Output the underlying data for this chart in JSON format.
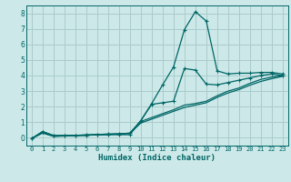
{
  "xlabel": "Humidex (Indice chaleur)",
  "bg_color": "#cce8e8",
  "grid_color": "#aacccc",
  "line_color": "#006666",
  "xlim": [
    -0.5,
    23.5
  ],
  "ylim": [
    -0.5,
    8.5
  ],
  "xticks": [
    0,
    1,
    2,
    3,
    4,
    5,
    6,
    7,
    8,
    9,
    10,
    11,
    12,
    13,
    14,
    15,
    16,
    17,
    18,
    19,
    20,
    21,
    22,
    23
  ],
  "yticks": [
    0,
    1,
    2,
    3,
    4,
    5,
    6,
    7,
    8
  ],
  "curve_spike_x": [
    0,
    1,
    2,
    3,
    4,
    5,
    6,
    7,
    8,
    9,
    10,
    11,
    12,
    13,
    14,
    15,
    16,
    17,
    18,
    19,
    20,
    21,
    22,
    23
  ],
  "curve_spike_y": [
    -0.05,
    0.4,
    0.15,
    0.15,
    0.15,
    0.15,
    0.2,
    0.2,
    0.2,
    0.2,
    1.1,
    2.2,
    3.4,
    4.55,
    6.95,
    8.1,
    7.5,
    4.3,
    4.1,
    4.15,
    4.15,
    4.2,
    4.2,
    4.1
  ],
  "curve2_x": [
    0,
    1,
    2,
    3,
    4,
    5,
    6,
    7,
    8,
    9,
    10,
    11,
    12,
    13,
    14,
    15,
    16,
    17,
    18,
    19,
    20,
    21,
    22,
    23
  ],
  "curve2_y": [
    -0.05,
    0.4,
    0.15,
    0.15,
    0.15,
    0.2,
    0.2,
    0.25,
    0.25,
    0.3,
    1.1,
    2.15,
    2.25,
    2.35,
    4.45,
    4.35,
    3.45,
    3.4,
    3.55,
    3.7,
    3.85,
    4.0,
    4.1,
    4.0
  ],
  "curve3_x": [
    0,
    1,
    2,
    3,
    4,
    5,
    6,
    7,
    8,
    9,
    10,
    11,
    12,
    13,
    14,
    15,
    16,
    17,
    18,
    19,
    20,
    21,
    22,
    23
  ],
  "curve3_y": [
    -0.05,
    0.35,
    0.1,
    0.12,
    0.15,
    0.17,
    0.2,
    0.22,
    0.25,
    0.3,
    1.05,
    1.3,
    1.55,
    1.8,
    2.1,
    2.2,
    2.35,
    2.7,
    3.0,
    3.2,
    3.5,
    3.75,
    3.9,
    4.0
  ],
  "curve4_x": [
    0,
    1,
    2,
    3,
    4,
    5,
    6,
    7,
    8,
    9,
    10,
    11,
    12,
    13,
    14,
    15,
    16,
    17,
    18,
    19,
    20,
    21,
    22,
    23
  ],
  "curve4_y": [
    -0.05,
    0.3,
    0.1,
    0.12,
    0.15,
    0.17,
    0.2,
    0.22,
    0.25,
    0.28,
    0.95,
    1.2,
    1.45,
    1.7,
    1.95,
    2.1,
    2.25,
    2.6,
    2.88,
    3.1,
    3.38,
    3.62,
    3.8,
    3.95
  ]
}
